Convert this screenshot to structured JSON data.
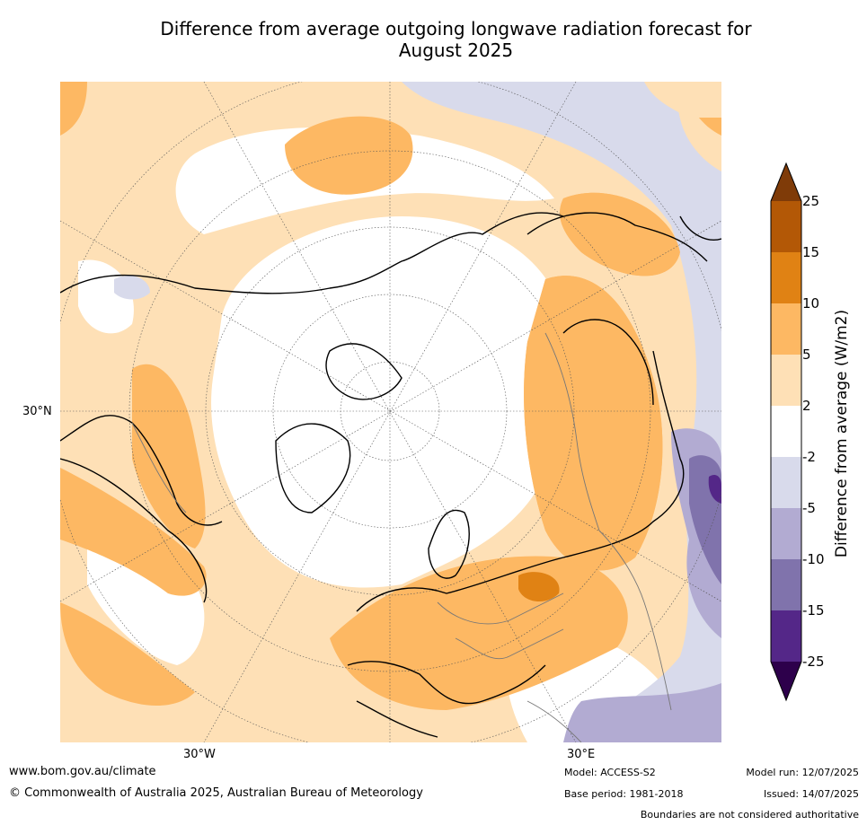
{
  "title_line1": "Difference from average outgoing longwave radiation forecast for",
  "title_line2": "August 2025",
  "axis_labels": {
    "lat_30n": "30°N",
    "lon_30w": "30°W",
    "lon_30e": "30°E"
  },
  "colorbar": {
    "title": "Difference from average (W/m2)",
    "ticks": [
      "25",
      "15",
      "10",
      "5",
      "2",
      "-2",
      "-5",
      "-10",
      "-15",
      "-25"
    ],
    "colors": {
      "above_25": "#7f3b08",
      "c15_25": "#b35806",
      "c10_15": "#e08214",
      "c5_10": "#fdb863",
      "c2_5": "#fee0b6",
      "c_neutral": "#ffffff",
      "cm5_m2": "#d8daeb",
      "cm10_m5": "#b2abd2",
      "cm15_m10": "#8073ac",
      "cm25_m15": "#542788",
      "below_m25": "#2d004b"
    }
  },
  "footer": {
    "website": "www.bom.gov.au/climate",
    "copyright": "© Commonwealth of Australia 2025, Australian Bureau of Meteorology",
    "model": "Model: ACCESS-S2",
    "base_period": "Base period: 1981-2018",
    "model_run": "Model run: 12/07/2025",
    "issued": "Issued: 14/07/2025",
    "disclaimer": "Boundaries are not considered authoritative"
  }
}
